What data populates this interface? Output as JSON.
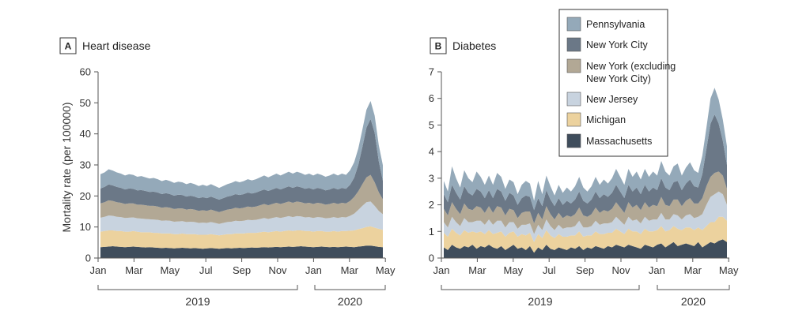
{
  "chart_data": [
    {
      "type": "area",
      "stacked": true,
      "panel": "A",
      "title": "Heart disease",
      "ylabel": "Mortality rate (per 100000)",
      "ylim": [
        0,
        60
      ],
      "yticks": [
        0,
        10,
        20,
        30,
        40,
        50,
        60
      ],
      "xticks": [
        "Jan",
        "Mar",
        "May",
        "Jul",
        "Sep",
        "Nov",
        "Jan",
        "Mar",
        "May"
      ],
      "years": [
        "2019",
        "2020"
      ],
      "x_weeks": [
        1,
        2,
        3,
        4,
        5,
        6,
        7,
        8,
        9,
        10,
        11,
        12,
        13,
        14,
        15,
        16,
        17,
        18,
        19,
        20,
        21,
        22,
        23,
        24,
        25,
        26,
        27,
        28,
        29,
        30,
        31,
        32,
        33,
        34,
        35,
        36,
        37,
        38,
        39,
        40,
        41,
        42,
        43,
        44,
        45,
        46,
        47,
        48,
        49,
        50,
        51,
        52,
        53,
        54,
        55,
        56,
        57,
        58,
        59,
        60,
        61,
        62,
        63,
        64,
        65,
        66,
        67,
        68,
        69,
        70
      ],
      "series": [
        {
          "name": "Massachusetts",
          "color": "#3f4d5c",
          "values": [
            3.5,
            3.6,
            3.7,
            3.8,
            3.7,
            3.6,
            3.5,
            3.6,
            3.7,
            3.6,
            3.5,
            3.4,
            3.5,
            3.4,
            3.3,
            3.2,
            3.3,
            3.2,
            3.1,
            3.2,
            3.3,
            3.2,
            3.1,
            3.2,
            3.1,
            3.0,
            3.1,
            3.2,
            3.1,
            3.0,
            3.1,
            3.2,
            3.1,
            3.2,
            3.3,
            3.2,
            3.3,
            3.4,
            3.3,
            3.4,
            3.5,
            3.4,
            3.5,
            3.6,
            3.5,
            3.6,
            3.7,
            3.6,
            3.7,
            3.8,
            3.7,
            3.6,
            3.5,
            3.6,
            3.7,
            3.6,
            3.5,
            3.6,
            3.5,
            3.6,
            3.7,
            3.6,
            3.5,
            3.7,
            3.8,
            4.0,
            4.0,
            3.8,
            3.6,
            3.5
          ]
        },
        {
          "name": "Michigan",
          "color": "#ecd29e",
          "values": [
            5.0,
            5.1,
            5.2,
            5.1,
            5.0,
            5.1,
            5.0,
            4.9,
            5.0,
            4.9,
            4.8,
            4.9,
            4.8,
            4.7,
            4.8,
            4.7,
            4.6,
            4.7,
            4.6,
            4.5,
            4.6,
            4.5,
            4.6,
            4.5,
            4.4,
            4.5,
            4.4,
            4.5,
            4.4,
            4.3,
            4.4,
            4.5,
            4.6,
            4.7,
            4.6,
            4.7,
            4.8,
            4.7,
            4.8,
            4.9,
            5.0,
            4.9,
            5.0,
            5.1,
            5.0,
            5.1,
            5.2,
            5.1,
            5.2,
            5.1,
            5.0,
            5.1,
            5.0,
            5.1,
            5.0,
            4.9,
            5.0,
            5.1,
            5.0,
            5.1,
            5.0,
            5.2,
            5.4,
            5.6,
            5.8,
            6.0,
            6.2,
            6.0,
            5.8,
            5.6
          ]
        },
        {
          "name": "New Jersey",
          "color": "#c8d3df",
          "values": [
            4.5,
            4.6,
            4.8,
            4.7,
            4.6,
            4.5,
            4.4,
            4.5,
            4.4,
            4.3,
            4.4,
            4.3,
            4.2,
            4.3,
            4.2,
            4.1,
            4.2,
            4.1,
            4.0,
            4.1,
            4.0,
            3.9,
            4.0,
            3.9,
            3.8,
            3.9,
            3.8,
            3.9,
            3.8,
            3.7,
            3.8,
            3.9,
            4.0,
            4.1,
            4.0,
            4.1,
            4.2,
            4.1,
            4.2,
            4.3,
            4.4,
            4.3,
            4.4,
            4.5,
            4.4,
            4.5,
            4.6,
            4.5,
            4.6,
            4.5,
            4.4,
            4.5,
            4.4,
            4.5,
            4.4,
            4.3,
            4.4,
            4.5,
            4.4,
            4.5,
            4.4,
            4.8,
            5.4,
            6.2,
            7.2,
            8.0,
            8.0,
            7.0,
            5.8,
            5.0
          ]
        },
        {
          "name": "New York (excluding New York City)",
          "color": "#b2a895",
          "values": [
            4.6,
            4.7,
            4.9,
            4.8,
            4.7,
            4.6,
            4.5,
            4.6,
            4.5,
            4.4,
            4.5,
            4.4,
            4.3,
            4.4,
            4.3,
            4.2,
            4.3,
            4.2,
            4.1,
            4.2,
            4.1,
            4.0,
            4.1,
            4.0,
            3.9,
            4.0,
            3.9,
            4.0,
            3.9,
            3.8,
            3.9,
            4.0,
            4.1,
            4.2,
            4.1,
            4.2,
            4.3,
            4.2,
            4.3,
            4.4,
            4.5,
            4.4,
            4.5,
            4.6,
            4.5,
            4.6,
            4.7,
            4.6,
            4.7,
            4.6,
            4.5,
            4.6,
            4.5,
            4.6,
            4.5,
            4.4,
            4.5,
            4.6,
            4.5,
            4.6,
            4.5,
            4.8,
            5.4,
            6.0,
            7.0,
            8.0,
            8.6,
            7.6,
            6.0,
            4.8
          ]
        },
        {
          "name": "New York City",
          "color": "#6b7887",
          "values": [
            4.8,
            4.9,
            5.1,
            5.0,
            4.9,
            4.8,
            4.7,
            4.8,
            4.7,
            4.6,
            4.7,
            4.6,
            4.5,
            4.6,
            4.5,
            4.4,
            4.5,
            4.4,
            4.3,
            4.4,
            4.3,
            4.2,
            4.3,
            4.2,
            4.1,
            4.2,
            4.1,
            4.2,
            4.1,
            4.0,
            4.1,
            4.2,
            4.3,
            4.4,
            4.3,
            4.4,
            4.5,
            4.4,
            4.5,
            4.6,
            4.7,
            4.6,
            4.7,
            4.8,
            4.7,
            4.8,
            4.9,
            4.8,
            4.9,
            4.8,
            4.7,
            4.8,
            4.7,
            4.8,
            4.7,
            4.6,
            4.7,
            4.8,
            4.7,
            4.8,
            4.7,
            5.2,
            6.2,
            8.5,
            12.0,
            16.0,
            18.0,
            16.0,
            10.0,
            6.0
          ]
        },
        {
          "name": "Pennsylvania",
          "color": "#94a9b9",
          "values": [
            4.6,
            4.7,
            4.9,
            4.8,
            4.7,
            4.6,
            4.5,
            4.6,
            4.5,
            4.4,
            4.5,
            4.4,
            4.3,
            4.4,
            4.3,
            4.2,
            4.3,
            4.2,
            4.1,
            4.2,
            4.1,
            4.0,
            4.1,
            4.0,
            3.9,
            4.0,
            3.9,
            4.0,
            3.9,
            3.8,
            3.9,
            4.0,
            4.1,
            4.2,
            4.1,
            4.2,
            4.3,
            4.2,
            4.3,
            4.4,
            4.5,
            4.4,
            4.5,
            4.6,
            4.5,
            4.6,
            4.7,
            4.6,
            4.7,
            4.6,
            4.5,
            4.6,
            4.5,
            4.6,
            4.5,
            4.4,
            4.5,
            4.6,
            4.5,
            4.6,
            4.5,
            4.7,
            5.0,
            5.3,
            5.6,
            5.8,
            5.8,
            5.5,
            5.2,
            5.0
          ]
        }
      ]
    },
    {
      "type": "area",
      "stacked": true,
      "panel": "B",
      "title": "Diabetes",
      "ylabel": "",
      "ylim": [
        0,
        7
      ],
      "yticks": [
        0,
        1,
        2,
        3,
        4,
        5,
        6,
        7
      ],
      "xticks": [
        "Jan",
        "Mar",
        "May",
        "Jul",
        "Sep",
        "Nov",
        "Jan",
        "Mar",
        "May"
      ],
      "years": [
        "2019",
        "2020"
      ],
      "x_weeks": [
        1,
        2,
        3,
        4,
        5,
        6,
        7,
        8,
        9,
        10,
        11,
        12,
        13,
        14,
        15,
        16,
        17,
        18,
        19,
        20,
        21,
        22,
        23,
        24,
        25,
        26,
        27,
        28,
        29,
        30,
        31,
        32,
        33,
        34,
        35,
        36,
        37,
        38,
        39,
        40,
        41,
        42,
        43,
        44,
        45,
        46,
        47,
        48,
        49,
        50,
        51,
        52,
        53,
        54,
        55,
        56,
        57,
        58,
        59,
        60,
        61,
        62,
        63,
        64,
        65,
        66,
        67,
        68,
        69,
        70
      ],
      "series": [
        {
          "name": "Massachusetts",
          "color": "#3f4d5c",
          "values": [
            0.4,
            0.3,
            0.5,
            0.4,
            0.35,
            0.45,
            0.4,
            0.5,
            0.35,
            0.45,
            0.4,
            0.5,
            0.4,
            0.35,
            0.45,
            0.3,
            0.4,
            0.5,
            0.35,
            0.4,
            0.3,
            0.45,
            0.2,
            0.4,
            0.3,
            0.5,
            0.35,
            0.3,
            0.4,
            0.35,
            0.3,
            0.4,
            0.35,
            0.45,
            0.3,
            0.4,
            0.35,
            0.45,
            0.4,
            0.35,
            0.45,
            0.4,
            0.5,
            0.45,
            0.4,
            0.5,
            0.45,
            0.4,
            0.35,
            0.5,
            0.45,
            0.4,
            0.5,
            0.55,
            0.4,
            0.5,
            0.6,
            0.45,
            0.5,
            0.55,
            0.5,
            0.45,
            0.6,
            0.4,
            0.5,
            0.6,
            0.55,
            0.65,
            0.7,
            0.6
          ]
        },
        {
          "name": "Michigan",
          "color": "#ecd29e",
          "values": [
            0.55,
            0.5,
            0.6,
            0.55,
            0.5,
            0.6,
            0.55,
            0.5,
            0.6,
            0.55,
            0.5,
            0.55,
            0.5,
            0.6,
            0.55,
            0.5,
            0.55,
            0.5,
            0.45,
            0.5,
            0.55,
            0.5,
            0.4,
            0.5,
            0.45,
            0.55,
            0.5,
            0.45,
            0.5,
            0.45,
            0.5,
            0.45,
            0.5,
            0.55,
            0.5,
            0.45,
            0.5,
            0.55,
            0.5,
            0.55,
            0.5,
            0.55,
            0.6,
            0.55,
            0.5,
            0.6,
            0.55,
            0.6,
            0.55,
            0.6,
            0.55,
            0.6,
            0.55,
            0.65,
            0.6,
            0.55,
            0.6,
            0.65,
            0.55,
            0.6,
            0.65,
            0.6,
            0.55,
            0.65,
            0.7,
            0.75,
            0.8,
            0.9,
            0.85,
            0.8
          ]
        },
        {
          "name": "New Jersey",
          "color": "#c8d3df",
          "values": [
            0.4,
            0.35,
            0.45,
            0.4,
            0.35,
            0.45,
            0.4,
            0.35,
            0.45,
            0.4,
            0.35,
            0.4,
            0.35,
            0.45,
            0.4,
            0.35,
            0.4,
            0.35,
            0.3,
            0.35,
            0.4,
            0.35,
            0.3,
            0.35,
            0.3,
            0.4,
            0.35,
            0.3,
            0.35,
            0.3,
            0.35,
            0.3,
            0.35,
            0.4,
            0.35,
            0.3,
            0.35,
            0.4,
            0.35,
            0.4,
            0.35,
            0.4,
            0.45,
            0.4,
            0.35,
            0.45,
            0.4,
            0.45,
            0.4,
            0.45,
            0.4,
            0.45,
            0.4,
            0.5,
            0.45,
            0.4,
            0.45,
            0.5,
            0.4,
            0.45,
            0.5,
            0.45,
            0.4,
            0.6,
            0.8,
            0.95,
            1.05,
            0.95,
            0.85,
            0.6
          ]
        },
        {
          "name": "New York (excluding New York City)",
          "color": "#b2a895",
          "values": [
            0.5,
            0.45,
            0.55,
            0.5,
            0.45,
            0.55,
            0.5,
            0.45,
            0.55,
            0.5,
            0.45,
            0.5,
            0.45,
            0.55,
            0.5,
            0.45,
            0.5,
            0.45,
            0.4,
            0.45,
            0.5,
            0.45,
            0.4,
            0.45,
            0.4,
            0.5,
            0.45,
            0.4,
            0.45,
            0.4,
            0.45,
            0.4,
            0.45,
            0.5,
            0.45,
            0.4,
            0.45,
            0.5,
            0.45,
            0.5,
            0.45,
            0.5,
            0.55,
            0.5,
            0.45,
            0.55,
            0.5,
            0.55,
            0.5,
            0.55,
            0.5,
            0.55,
            0.5,
            0.6,
            0.55,
            0.5,
            0.55,
            0.6,
            0.5,
            0.55,
            0.6,
            0.55,
            0.5,
            0.6,
            0.7,
            0.75,
            0.8,
            0.75,
            0.7,
            0.6
          ]
        },
        {
          "name": "New York City",
          "color": "#6b7887",
          "values": [
            0.55,
            0.5,
            0.65,
            0.6,
            0.55,
            0.65,
            0.6,
            0.55,
            0.65,
            0.6,
            0.55,
            0.6,
            0.55,
            0.65,
            0.6,
            0.55,
            0.6,
            0.55,
            0.5,
            0.55,
            0.6,
            0.55,
            0.5,
            0.55,
            0.5,
            0.6,
            0.55,
            0.5,
            0.55,
            0.5,
            0.55,
            0.5,
            0.55,
            0.6,
            0.55,
            0.5,
            0.55,
            0.6,
            0.55,
            0.6,
            0.55,
            0.6,
            0.65,
            0.6,
            0.55,
            0.65,
            0.6,
            0.65,
            0.6,
            0.65,
            0.6,
            0.65,
            0.6,
            0.7,
            0.65,
            0.6,
            0.65,
            0.7,
            0.6,
            0.65,
            0.7,
            0.65,
            0.6,
            0.9,
            1.4,
            2.0,
            2.2,
            1.8,
            1.3,
            0.9
          ]
        },
        {
          "name": "Pennsylvania",
          "color": "#94a9b9",
          "values": [
            0.5,
            0.4,
            0.7,
            0.55,
            0.45,
            0.6,
            0.55,
            0.5,
            0.65,
            0.55,
            0.5,
            0.55,
            0.5,
            0.6,
            0.55,
            0.45,
            0.5,
            0.5,
            0.4,
            0.5,
            0.55,
            0.5,
            0.35,
            0.65,
            0.45,
            0.55,
            0.5,
            0.4,
            0.5,
            0.45,
            0.5,
            0.45,
            0.5,
            0.55,
            0.5,
            0.45,
            0.5,
            0.55,
            0.5,
            0.55,
            0.5,
            0.55,
            0.6,
            0.55,
            0.5,
            0.6,
            0.55,
            0.6,
            0.55,
            0.6,
            0.55,
            0.6,
            0.55,
            0.65,
            0.6,
            0.55,
            0.6,
            0.65,
            0.55,
            0.6,
            0.65,
            0.6,
            0.55,
            0.7,
            0.8,
            0.95,
            1.0,
            0.9,
            0.8,
            0.7
          ]
        }
      ]
    }
  ],
  "legend": {
    "items": [
      {
        "label": "Pennsylvania",
        "color": "#94a9b9"
      },
      {
        "label": "New York City",
        "color": "#6b7887"
      },
      {
        "label": "New York (excluding New York City)",
        "label_lines": [
          "New York (excluding",
          "New York City)"
        ],
        "color": "#b2a895"
      },
      {
        "label": "New Jersey",
        "color": "#c8d3df"
      },
      {
        "label": "Michigan",
        "color": "#ecd29e"
      },
      {
        "label": "Massachusetts",
        "color": "#3f4d5c"
      }
    ]
  }
}
